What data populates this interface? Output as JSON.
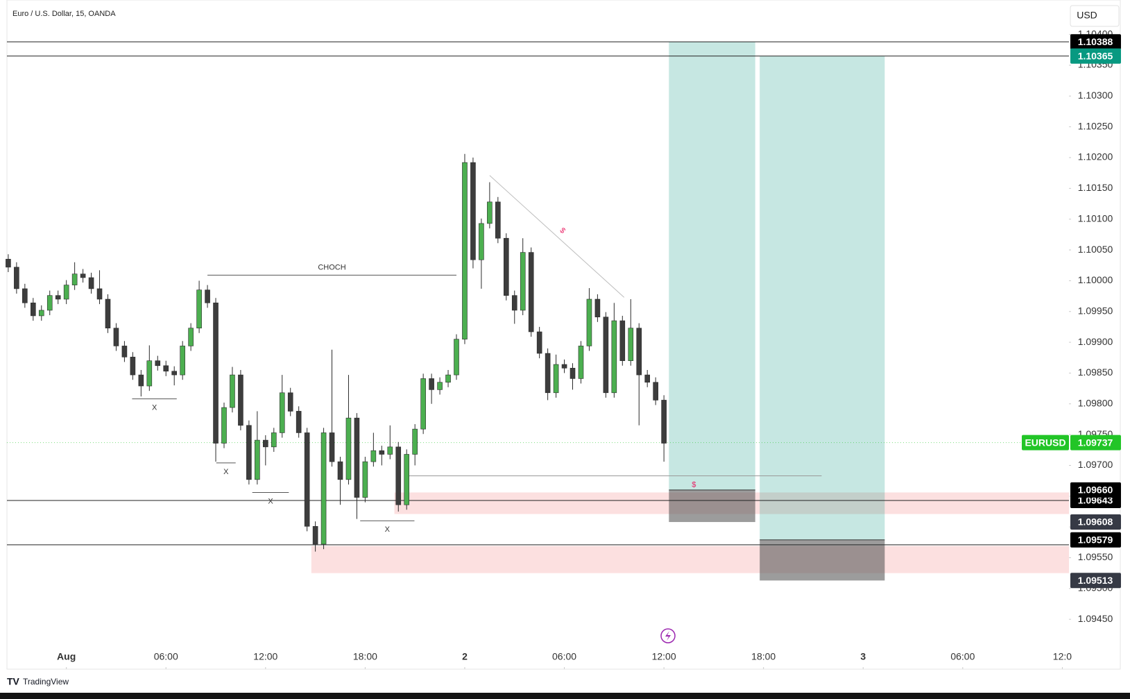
{
  "header": {
    "symbol": "Euro / U.S. Dollar, 15, OANDA",
    "currency": "USD",
    "brand": "TradingView"
  },
  "chart_data": {
    "type": "candlestick",
    "x": [
      -3.5,
      -3,
      -2.5,
      -2,
      -1.5,
      -1,
      -0.5,
      0,
      0.5,
      1,
      1.5,
      2,
      2.5,
      3,
      3.5,
      4,
      4.5,
      5,
      5.5,
      6,
      6.5,
      7,
      7.5,
      8,
      8.5,
      9,
      9.5,
      10,
      10.5,
      11,
      11.5,
      12,
      12.5,
      13,
      13.5,
      14,
      14.5,
      15,
      15.5,
      16,
      16.5,
      17,
      17.5,
      18,
      18.5,
      19,
      19.5,
      20,
      20.5,
      21,
      21.5,
      22,
      22.5,
      23,
      23.5,
      24,
      24.5,
      25,
      25.5,
      26,
      26.5,
      27,
      27.5,
      28,
      28.5,
      29,
      29.5,
      30,
      30.5,
      31,
      31.5,
      32,
      32.5,
      33,
      33.5,
      34,
      34.5,
      35,
      35.5,
      36
    ],
    "open": [
      1.10035,
      1.10022,
      1.09987,
      1.09964,
      1.09943,
      1.09952,
      1.09976,
      1.0997,
      1.09993,
      1.10011,
      1.10005,
      1.09987,
      1.0997,
      1.09923,
      1.09894,
      1.09876,
      1.09847,
      1.09829,
      1.0987,
      1.09862,
      1.09853,
      1.09847,
      1.09894,
      1.09923,
      1.09985,
      1.09964,
      1.09736,
      1.09794,
      1.09847,
      1.09765,
      1.09677,
      1.09741,
      1.0973,
      1.09753,
      1.09818,
      1.09788,
      1.09753,
      1.09601,
      1.09572,
      1.09753,
      1.09706,
      1.09677,
      1.09777,
      1.09648,
      1.09706,
      1.09724,
      1.09718,
      1.0973,
      1.09636,
      1.09718,
      1.09759,
      1.09841,
      1.09823,
      1.09835,
      1.09847,
      1.09905,
      1.10192,
      1.10034,
      1.10093,
      1.10128,
      1.10069,
      1.09976,
      1.09952,
      1.10046,
      1.09917,
      1.09882,
      1.09818,
      1.09864,
      1.09858,
      1.09841,
      1.09894,
      1.0997,
      1.09941,
      1.09818,
      1.09935,
      1.0987,
      1.09923,
      1.09847,
      1.09835,
      1.09806
    ],
    "high": [
      1.10043,
      1.1003,
      1.09995,
      1.09972,
      1.0996,
      1.09984,
      1.09984,
      1.10001,
      1.1003,
      1.10019,
      1.10013,
      1.10017,
      1.09978,
      1.09931,
      1.09902,
      1.09884,
      1.09855,
      1.09895,
      1.09878,
      1.0987,
      1.09861,
      1.09902,
      1.09931,
      1.1,
      1.09993,
      1.09972,
      1.09802,
      1.0986,
      1.09855,
      1.09773,
      1.09788,
      1.09749,
      1.09761,
      1.09847,
      1.09826,
      1.09796,
      1.09761,
      1.09609,
      1.09761,
      1.09888,
      1.09714,
      1.09847,
      1.09785,
      1.09714,
      1.09753,
      1.09732,
      1.09765,
      1.09738,
      1.09726,
      1.09767,
      1.09849,
      1.09849,
      1.09843,
      1.09855,
      1.09913,
      1.10206,
      1.102,
      1.10101,
      1.1016,
      1.10136,
      1.10077,
      1.09984,
      1.10069,
      1.10054,
      1.09925,
      1.0989,
      1.0988,
      1.09872,
      1.09866,
      1.09902,
      1.09988,
      1.09978,
      1.09949,
      1.09964,
      1.09943,
      1.0997,
      1.09931,
      1.09855,
      1.09843,
      1.09814
    ],
    "low": [
      1.10014,
      1.09979,
      1.09956,
      1.09935,
      1.09935,
      1.09944,
      1.09962,
      1.09962,
      1.09985,
      1.09997,
      1.09979,
      1.09962,
      1.09915,
      1.09886,
      1.09868,
      1.09839,
      1.09812,
      1.09821,
      1.09854,
      1.09845,
      1.0983,
      1.09839,
      1.09886,
      1.09915,
      1.09956,
      1.09706,
      1.09728,
      1.09786,
      1.09757,
      1.09669,
      1.09669,
      1.097,
      1.09722,
      1.09745,
      1.0978,
      1.09745,
      1.09593,
      1.0956,
      1.09564,
      1.09698,
      1.09636,
      1.09669,
      1.09613,
      1.0964,
      1.09698,
      1.097,
      1.0971,
      1.09625,
      1.09628,
      1.097,
      1.09751,
      1.098,
      1.09815,
      1.09827,
      1.09839,
      1.09897,
      1.1002,
      1.09987,
      1.10085,
      1.10061,
      1.09968,
      1.0993,
      1.09944,
      1.09909,
      1.09874,
      1.09806,
      1.0981,
      1.0985,
      1.09823,
      1.09833,
      1.09886,
      1.09933,
      1.0981,
      1.0981,
      1.09862,
      1.09862,
      1.09765,
      1.09827,
      1.09798,
      1.09706
    ],
    "close": [
      1.10022,
      1.09987,
      1.09964,
      1.09943,
      1.09952,
      1.09976,
      1.0997,
      1.09993,
      1.10011,
      1.10005,
      1.09987,
      1.0997,
      1.09923,
      1.09894,
      1.09876,
      1.09847,
      1.09829,
      1.0987,
      1.09862,
      1.09853,
      1.09847,
      1.09894,
      1.09923,
      1.09985,
      1.09964,
      1.09736,
      1.09794,
      1.09847,
      1.09765,
      1.09677,
      1.09741,
      1.0973,
      1.09753,
      1.09818,
      1.09788,
      1.09753,
      1.09601,
      1.09572,
      1.09753,
      1.09706,
      1.09677,
      1.09777,
      1.09648,
      1.09706,
      1.09724,
      1.09718,
      1.0973,
      1.09636,
      1.09718,
      1.09759,
      1.09841,
      1.09823,
      1.09835,
      1.09847,
      1.09905,
      1.10192,
      1.10034,
      1.10093,
      1.10128,
      1.10069,
      1.09976,
      1.09952,
      1.10046,
      1.09917,
      1.09882,
      1.09818,
      1.09864,
      1.09858,
      1.09841,
      1.09894,
      1.0997,
      1.09941,
      1.09818,
      1.09935,
      1.0987,
      1.09923,
      1.09847,
      1.09835,
      1.09806,
      1.09736
    ],
    "up_color": "#4caf50",
    "down_color": "#3d3d3d",
    "xlim": [
      -3.58,
      60.4
    ],
    "xticks": [
      {
        "value": 0,
        "label": "Aug"
      },
      {
        "value": 6,
        "label": "06:00"
      },
      {
        "value": 12,
        "label": "12:00"
      },
      {
        "value": 18,
        "label": "18:00"
      },
      {
        "value": 24,
        "label": "2"
      },
      {
        "value": 30,
        "label": "06:00"
      },
      {
        "value": 36,
        "label": "12:00"
      },
      {
        "value": 42,
        "label": "18:00"
      },
      {
        "value": 48,
        "label": "3"
      },
      {
        "value": 54,
        "label": "06:00"
      },
      {
        "value": 60,
        "label": "12:0"
      }
    ],
    "ylim": [
      1.09369,
      1.10456
    ],
    "yticks": [
      {
        "value": 1.0945,
        "label": "1.09450"
      },
      {
        "value": 1.095,
        "label": "1.09500"
      },
      {
        "value": 1.0955,
        "label": "1.09550"
      },
      {
        "value": 1.096,
        "label": "1.09600"
      },
      {
        "value": 1.0965,
        "label": "1.09650"
      },
      {
        "value": 1.097,
        "label": "1.09700"
      },
      {
        "value": 1.0975,
        "label": "1.09750"
      },
      {
        "value": 1.098,
        "label": "1.09800"
      },
      {
        "value": 1.0985,
        "label": "1.09850"
      },
      {
        "value": 1.099,
        "label": "1.09900"
      },
      {
        "value": 1.0995,
        "label": "1.09950"
      },
      {
        "value": 1.1,
        "label": "1.10000"
      },
      {
        "value": 1.1005,
        "label": "1.10050"
      },
      {
        "value": 1.101,
        "label": "1.10100"
      },
      {
        "value": 1.1015,
        "label": "1.10150"
      },
      {
        "value": 1.102,
        "label": "1.10200"
      },
      {
        "value": 1.1025,
        "label": "1.10250"
      },
      {
        "value": 1.103,
        "label": "1.10300"
      },
      {
        "value": 1.1035,
        "label": "1.10350"
      },
      {
        "value": 1.104,
        "label": "1.10400"
      }
    ],
    "zones": [
      {
        "start": 19.76,
        "end": 60.4,
        "top": 1.09656,
        "bottom": 1.09621,
        "color": "#fbdada"
      },
      {
        "start": 14.76,
        "end": 60.4,
        "top": 1.09569,
        "bottom": 1.09525,
        "color": "#fbdada"
      }
    ],
    "levels": [
      {
        "value": 1.10388
      },
      {
        "value": 1.10365
      },
      {
        "value": 1.09643,
        "label": "1.09643",
        "color": "#000000"
      },
      {
        "value": 1.09571
      }
    ],
    "positions": [
      {
        "start": 36.3,
        "end": 41.5,
        "target": {
          "value": 1.10388,
          "label": "1.10388",
          "color": "#000000"
        },
        "entry": {
          "value": 1.0966,
          "label": "1.09660",
          "color": "#000000"
        },
        "stop": {
          "value": 1.09608,
          "label": "1.09608",
          "color": "#363a45"
        }
      },
      {
        "start": 41.77,
        "end": 49.3,
        "target": {
          "value": 1.10365,
          "label": "1.10365",
          "color": "#089981"
        },
        "entry": {
          "value": 1.09579,
          "label": "1.09579",
          "color": "#000000"
        },
        "stop": {
          "value": 1.09513,
          "label": "1.09513",
          "color": "#363a45"
        }
      }
    ],
    "last_price": {
      "symbol": "EURUSD",
      "value": 1.09737,
      "color": "#22c527"
    },
    "annotations": [
      {
        "text": "CHOCH",
        "price": 1.10009,
        "start": 8.5,
        "end": 23.5
      },
      {
        "text": "X",
        "price": 1.09808,
        "start": 3.96,
        "end": 6.65
      },
      {
        "text": "X",
        "price": 1.09704,
        "start": 9.03,
        "end": 10.2
      },
      {
        "text": "X",
        "price": 1.09656,
        "start": 11.2,
        "end": 13.4
      },
      {
        "text": "X",
        "price": 1.0961,
        "start": 17.7,
        "end": 20.97
      },
      {
        "text": "$",
        "price": 1.09683,
        "start": 20.5,
        "end": 45.5,
        "color": "#e91e63"
      }
    ],
    "trendline": {
      "text": "$",
      "start": 25.5,
      "start_price": 1.10171,
      "end": 33.6,
      "end_price": 1.09973,
      "color": "#e91e63"
    }
  }
}
